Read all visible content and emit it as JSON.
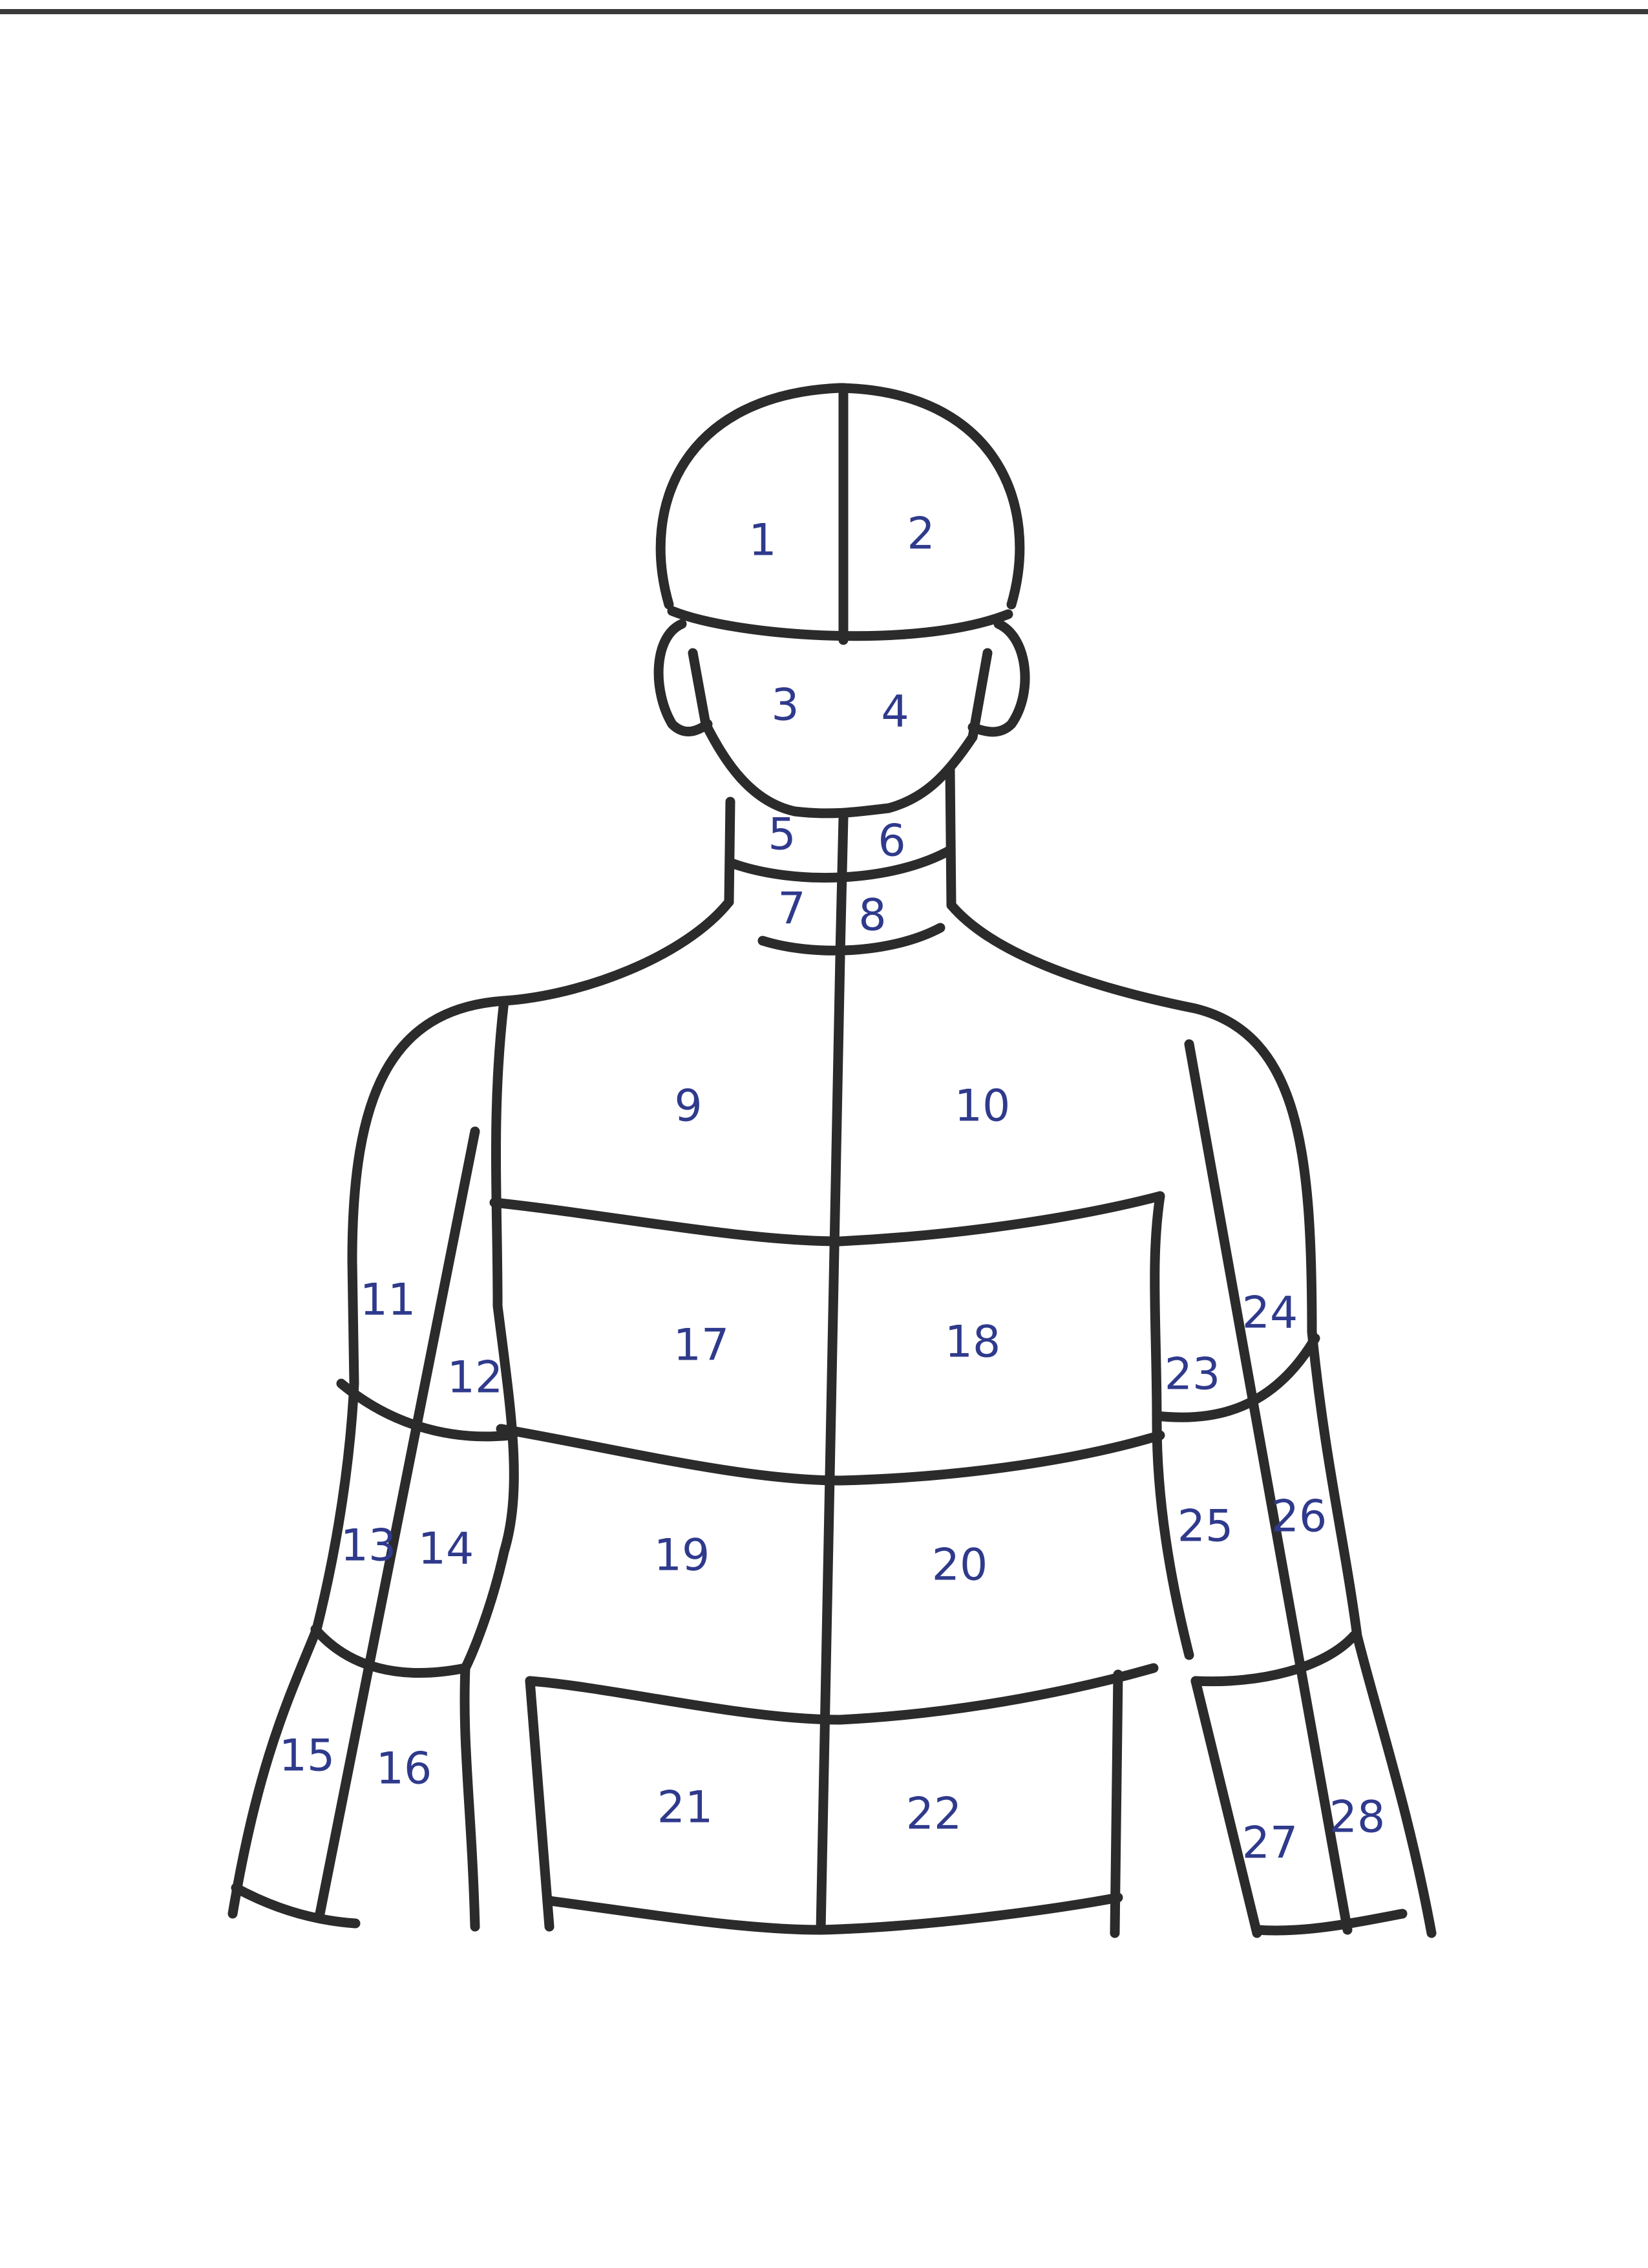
{
  "diagram": {
    "regions": [
      {
        "id": "region-1",
        "label": "1"
      },
      {
        "id": "region-2",
        "label": "2"
      },
      {
        "id": "region-3",
        "label": "3"
      },
      {
        "id": "region-4",
        "label": "4"
      },
      {
        "id": "region-5",
        "label": "5"
      },
      {
        "id": "region-6",
        "label": "6"
      },
      {
        "id": "region-7",
        "label": "7"
      },
      {
        "id": "region-8",
        "label": "8"
      },
      {
        "id": "region-9",
        "label": "9"
      },
      {
        "id": "region-10",
        "label": "10"
      },
      {
        "id": "region-11",
        "label": "11"
      },
      {
        "id": "region-12",
        "label": "12"
      },
      {
        "id": "region-13",
        "label": "13"
      },
      {
        "id": "region-14",
        "label": "14"
      },
      {
        "id": "region-15",
        "label": "15"
      },
      {
        "id": "region-16",
        "label": "16"
      },
      {
        "id": "region-17",
        "label": "17"
      },
      {
        "id": "region-18",
        "label": "18"
      },
      {
        "id": "region-19",
        "label": "19"
      },
      {
        "id": "region-20",
        "label": "20"
      },
      {
        "id": "region-21",
        "label": "21"
      },
      {
        "id": "region-22",
        "label": "22"
      },
      {
        "id": "region-23",
        "label": "23"
      },
      {
        "id": "region-24",
        "label": "24"
      },
      {
        "id": "region-25",
        "label": "25"
      },
      {
        "id": "region-26",
        "label": "26"
      },
      {
        "id": "region-27",
        "label": "27"
      },
      {
        "id": "region-28",
        "label": "28"
      }
    ]
  },
  "colors": {
    "outline": "#2b2b2b",
    "label_ink": "#2f3a8c",
    "paper": "#ffffff"
  }
}
